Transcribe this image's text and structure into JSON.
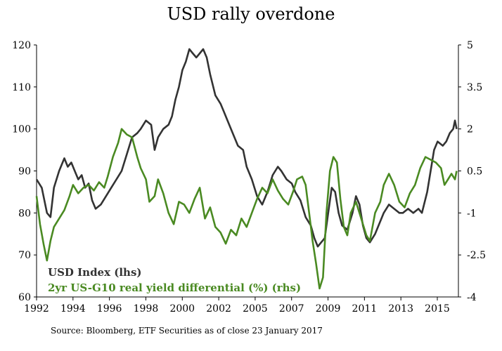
{
  "chart_data": {
    "type": "line",
    "title": "USD rally overdone",
    "source": "Source: Bloomberg, ETF Securities as of close 23 January 2017",
    "x_tick_labels": [
      "1992",
      "1994",
      "1996",
      "1998",
      "2000",
      "2002",
      "2005",
      "2007",
      "2009",
      "2011",
      "2013",
      "2015"
    ],
    "x_range": [
      1992,
      2016.3
    ],
    "left_axis": {
      "ticks": [
        "120",
        "110",
        "100",
        "90",
        "80",
        "70",
        "60"
      ],
      "ylim": [
        60,
        120
      ]
    },
    "right_axis": {
      "ticks": [
        "5",
        "3.5",
        "2",
        "0.5",
        "-1",
        "-2.5",
        "-4"
      ],
      "ylim": [
        -4,
        5
      ]
    },
    "series": [
      {
        "name": "USD Index (lhs)",
        "axis": "left",
        "color": "#333333",
        "points": [
          [
            1992.0,
            88
          ],
          [
            1992.3,
            86
          ],
          [
            1992.6,
            80
          ],
          [
            1992.8,
            79
          ],
          [
            1993.0,
            86
          ],
          [
            1993.3,
            90
          ],
          [
            1993.6,
            93
          ],
          [
            1993.8,
            91
          ],
          [
            1994.0,
            92
          ],
          [
            1994.2,
            90
          ],
          [
            1994.4,
            88
          ],
          [
            1994.6,
            89
          ],
          [
            1994.8,
            86
          ],
          [
            1995.0,
            87
          ],
          [
            1995.2,
            83
          ],
          [
            1995.4,
            81
          ],
          [
            1995.7,
            82
          ],
          [
            1996.0,
            84
          ],
          [
            1996.3,
            86
          ],
          [
            1996.6,
            88
          ],
          [
            1996.9,
            90
          ],
          [
            1997.2,
            94
          ],
          [
            1997.5,
            98
          ],
          [
            1997.8,
            99
          ],
          [
            1998.0,
            100
          ],
          [
            1998.3,
            102
          ],
          [
            1998.6,
            101
          ],
          [
            1998.8,
            95
          ],
          [
            1999.0,
            98
          ],
          [
            1999.3,
            100
          ],
          [
            1999.6,
            101
          ],
          [
            1999.8,
            103
          ],
          [
            2000.0,
            107
          ],
          [
            2000.2,
            110
          ],
          [
            2000.4,
            114
          ],
          [
            2000.6,
            116
          ],
          [
            2000.8,
            119
          ],
          [
            2001.0,
            118
          ],
          [
            2001.2,
            117
          ],
          [
            2001.4,
            118
          ],
          [
            2001.6,
            119
          ],
          [
            2001.8,
            117
          ],
          [
            2002.0,
            113
          ],
          [
            2002.3,
            108
          ],
          [
            2002.6,
            106
          ],
          [
            2002.8,
            104
          ],
          [
            2003.0,
            102
          ],
          [
            2003.3,
            99
          ],
          [
            2003.6,
            96
          ],
          [
            2003.9,
            95
          ],
          [
            2004.1,
            91
          ],
          [
            2004.4,
            88
          ],
          [
            2004.7,
            84
          ],
          [
            2005.0,
            82
          ],
          [
            2005.3,
            85
          ],
          [
            2005.6,
            89
          ],
          [
            2005.9,
            91
          ],
          [
            2006.1,
            90
          ],
          [
            2006.4,
            88
          ],
          [
            2006.7,
            87
          ],
          [
            2006.9,
            85
          ],
          [
            2007.2,
            83
          ],
          [
            2007.5,
            79
          ],
          [
            2007.8,
            77
          ],
          [
            2008.0,
            74
          ],
          [
            2008.2,
            72
          ],
          [
            2008.4,
            73
          ],
          [
            2008.6,
            74
          ],
          [
            2008.8,
            80
          ],
          [
            2009.0,
            86
          ],
          [
            2009.2,
            85
          ],
          [
            2009.4,
            80
          ],
          [
            2009.6,
            77
          ],
          [
            2009.9,
            76
          ],
          [
            2010.2,
            80
          ],
          [
            2010.4,
            84
          ],
          [
            2010.6,
            82
          ],
          [
            2010.8,
            77
          ],
          [
            2011.0,
            74
          ],
          [
            2011.2,
            73
          ],
          [
            2011.5,
            75
          ],
          [
            2011.8,
            78
          ],
          [
            2012.0,
            80
          ],
          [
            2012.3,
            82
          ],
          [
            2012.6,
            81
          ],
          [
            2012.9,
            80
          ],
          [
            2013.1,
            80
          ],
          [
            2013.4,
            81
          ],
          [
            2013.7,
            80
          ],
          [
            2014.0,
            81
          ],
          [
            2014.2,
            80
          ],
          [
            2014.5,
            85
          ],
          [
            2014.7,
            90
          ],
          [
            2014.9,
            95
          ],
          [
            2015.1,
            97
          ],
          [
            2015.4,
            96
          ],
          [
            2015.6,
            97
          ],
          [
            2015.8,
            99
          ],
          [
            2016.0,
            100
          ],
          [
            2016.1,
            102
          ],
          [
            2016.2,
            100
          ]
        ]
      },
      {
        "name": "2yr US-G10 real yield differential (%) (rhs)",
        "axis": "right",
        "color": "#4a8a22",
        "points": [
          [
            1992.0,
            -0.4
          ],
          [
            1992.2,
            -1.4
          ],
          [
            1992.4,
            -2.1
          ],
          [
            1992.6,
            -2.7
          ],
          [
            1992.8,
            -2.0
          ],
          [
            1993.0,
            -1.5
          ],
          [
            1993.3,
            -1.2
          ],
          [
            1993.6,
            -0.9
          ],
          [
            1993.9,
            -0.4
          ],
          [
            1994.1,
            0.0
          ],
          [
            1994.4,
            -0.3
          ],
          [
            1994.7,
            -0.1
          ],
          [
            1995.0,
            0.0
          ],
          [
            1995.3,
            -0.2
          ],
          [
            1995.6,
            0.1
          ],
          [
            1995.9,
            -0.1
          ],
          [
            1996.1,
            0.3
          ],
          [
            1996.4,
            1.0
          ],
          [
            1996.7,
            1.5
          ],
          [
            1996.9,
            2.0
          ],
          [
            1997.2,
            1.8
          ],
          [
            1997.5,
            1.7
          ],
          [
            1997.8,
            1.0
          ],
          [
            1998.0,
            0.6
          ],
          [
            1998.3,
            0.2
          ],
          [
            1998.5,
            -0.6
          ],
          [
            1998.8,
            -0.4
          ],
          [
            1999.0,
            0.2
          ],
          [
            1999.3,
            -0.3
          ],
          [
            1999.6,
            -1.0
          ],
          [
            1999.9,
            -1.4
          ],
          [
            2000.2,
            -0.6
          ],
          [
            2000.5,
            -0.7
          ],
          [
            2000.8,
            -1.0
          ],
          [
            2001.1,
            -0.5
          ],
          [
            2001.4,
            -0.1
          ],
          [
            2001.7,
            -1.2
          ],
          [
            2002.0,
            -0.8
          ],
          [
            2002.3,
            -1.5
          ],
          [
            2002.6,
            -1.7
          ],
          [
            2002.9,
            -2.1
          ],
          [
            2003.2,
            -1.6
          ],
          [
            2003.5,
            -1.8
          ],
          [
            2003.8,
            -1.2
          ],
          [
            2004.1,
            -1.5
          ],
          [
            2004.4,
            -1.0
          ],
          [
            2004.7,
            -0.5
          ],
          [
            2005.0,
            -0.1
          ],
          [
            2005.3,
            -0.3
          ],
          [
            2005.6,
            0.2
          ],
          [
            2005.9,
            -0.2
          ],
          [
            2006.2,
            -0.5
          ],
          [
            2006.5,
            -0.7
          ],
          [
            2006.8,
            -0.2
          ],
          [
            2007.0,
            0.2
          ],
          [
            2007.3,
            0.3
          ],
          [
            2007.5,
            0.0
          ],
          [
            2007.7,
            -1.0
          ],
          [
            2007.9,
            -2.0
          ],
          [
            2008.1,
            -2.8
          ],
          [
            2008.3,
            -3.7
          ],
          [
            2008.5,
            -3.3
          ],
          [
            2008.7,
            -1.0
          ],
          [
            2008.9,
            0.5
          ],
          [
            2009.1,
            1.0
          ],
          [
            2009.3,
            0.8
          ],
          [
            2009.5,
            -0.5
          ],
          [
            2009.7,
            -1.5
          ],
          [
            2009.9,
            -1.8
          ],
          [
            2010.1,
            -1.0
          ],
          [
            2010.4,
            -0.6
          ],
          [
            2010.7,
            -1.2
          ],
          [
            2011.0,
            -1.8
          ],
          [
            2011.2,
            -2.0
          ],
          [
            2011.5,
            -1.0
          ],
          [
            2011.8,
            -0.6
          ],
          [
            2012.0,
            0.0
          ],
          [
            2012.3,
            0.4
          ],
          [
            2012.6,
            0.0
          ],
          [
            2012.9,
            -0.6
          ],
          [
            2013.2,
            -0.8
          ],
          [
            2013.5,
            -0.3
          ],
          [
            2013.8,
            0.0
          ],
          [
            2014.1,
            0.6
          ],
          [
            2014.4,
            1.0
          ],
          [
            2014.7,
            0.9
          ],
          [
            2015.0,
            0.8
          ],
          [
            2015.3,
            0.6
          ],
          [
            2015.5,
            0.0
          ],
          [
            2015.7,
            0.2
          ],
          [
            2015.9,
            0.4
          ],
          [
            2016.1,
            0.2
          ],
          [
            2016.2,
            0.5
          ]
        ]
      }
    ]
  }
}
